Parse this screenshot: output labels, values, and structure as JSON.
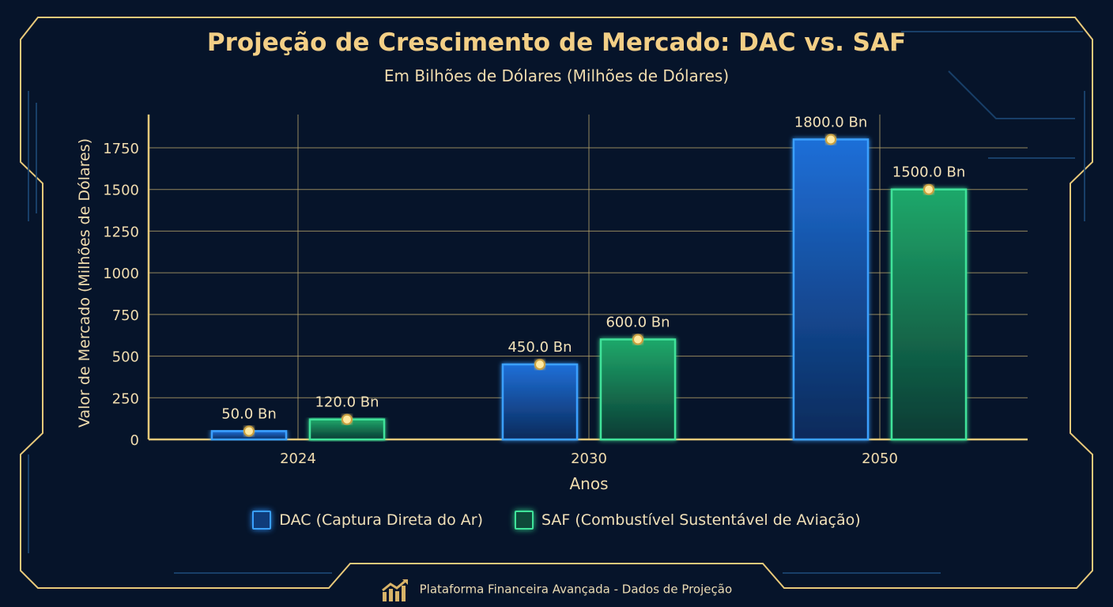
{
  "chart_data": {
    "type": "bar",
    "title": "Projeção de Crescimento de Mercado: DAC vs. SAF",
    "subtitle": "Em Bilhões de Dólares (Milhões de Dólares)",
    "xlabel": "Anos",
    "ylabel": "Valor de Mercado (Milhões de Dólares)",
    "categories": [
      "2024",
      "2030",
      "2050"
    ],
    "yticks": [
      0,
      250,
      500,
      750,
      1000,
      1250,
      1500,
      1750
    ],
    "ylim": [
      0,
      1950
    ],
    "grid": true,
    "legend_position": "bottom",
    "series": [
      {
        "name": "DAC (Captura Direta do Ar)",
        "values": [
          50,
          450,
          1800
        ],
        "labels": [
          "50.0 Bn",
          "450.0 Bn",
          "1800.0 Bn"
        ],
        "color": "#2b8cf0"
      },
      {
        "name": "SAF (Combustível Sustentável de Aviação)",
        "values": [
          120,
          600,
          1500
        ],
        "labels": [
          "120.0 Bn",
          "600.0 Bn",
          "1500.0 Bn"
        ],
        "color": "#2fd08a"
      }
    ]
  },
  "footer": {
    "text": "Plataforma Financeira Avançada - Dados de Projeção",
    "icon": "growth-chart-icon"
  },
  "colors": {
    "accent": "#f3cf86",
    "background": "#06142a"
  }
}
